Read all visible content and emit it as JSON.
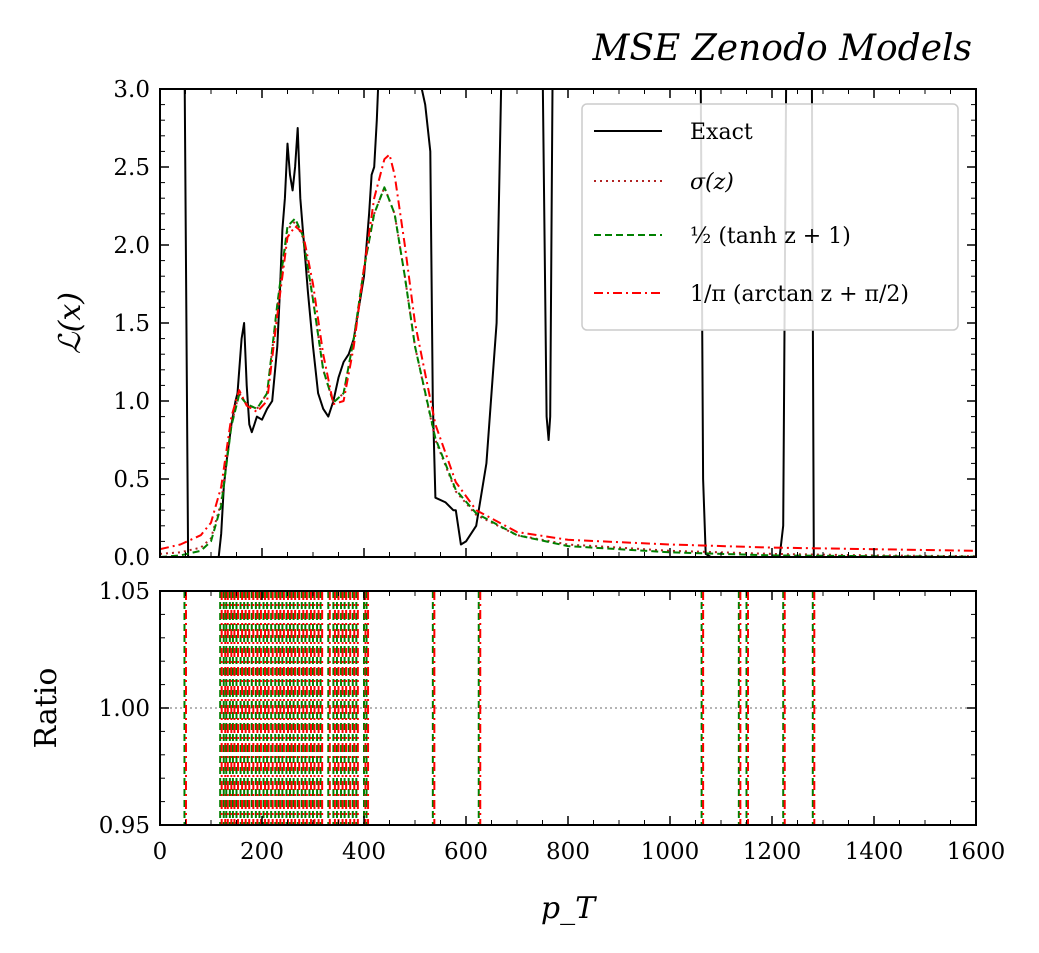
{
  "chart_data": {
    "type": "line",
    "title": "MSE Zenodo Models",
    "xlabel": "p_T",
    "top_panel": {
      "ylabel": "ℒ(x)",
      "xlim": [
        0,
        1600
      ],
      "ylim": [
        0,
        3.0
      ],
      "yticks": [
        "0.0",
        "0.5",
        "1.0",
        "1.5",
        "2.0",
        "2.5",
        "3.0"
      ],
      "legend_position": "top-right",
      "series": [
        {
          "name": "Exact",
          "color": "#000000",
          "style": "solid",
          "x": [
            0,
            40,
            48,
            55,
            115,
            120,
            125,
            130,
            140,
            148,
            152,
            160,
            165,
            170,
            175,
            180,
            185,
            190,
            200,
            210,
            220,
            230,
            235,
            240,
            245,
            250,
            255,
            260,
            265,
            270,
            275,
            280,
            285,
            290,
            300,
            310,
            320,
            330,
            340,
            350,
            360,
            370,
            375,
            380,
            390,
            400,
            410,
            415,
            420,
            425,
            430,
            440,
            500,
            520,
            530,
            535,
            540,
            560,
            575,
            580,
            590,
            600,
            620,
            640,
            660,
            670,
            680,
            750,
            758,
            762,
            765,
            770,
            775,
            780,
            1000,
            1060,
            1065,
            1070,
            1080,
            1100,
            1150,
            1200,
            1215,
            1222,
            1228,
            1240,
            1270,
            1278,
            1282,
            1300,
            1600
          ],
          "y": [
            3.2,
            3.2,
            3.2,
            0.0,
            0.0,
            0.15,
            0.45,
            0.6,
            0.85,
            1.0,
            1.05,
            1.4,
            1.5,
            1.1,
            0.85,
            0.8,
            0.85,
            0.9,
            0.88,
            0.95,
            1.0,
            1.35,
            1.7,
            2.1,
            2.3,
            2.65,
            2.45,
            2.35,
            2.5,
            2.75,
            2.3,
            2.1,
            1.9,
            1.7,
            1.35,
            1.05,
            0.95,
            0.9,
            1.0,
            1.15,
            1.25,
            1.3,
            1.35,
            1.4,
            1.6,
            1.8,
            2.2,
            2.45,
            2.5,
            2.8,
            3.2,
            3.2,
            3.2,
            2.9,
            2.6,
            1.0,
            0.38,
            0.35,
            0.3,
            0.3,
            0.08,
            0.1,
            0.2,
            0.6,
            1.5,
            3.2,
            3.2,
            3.2,
            0.9,
            0.75,
            0.9,
            3.2,
            3.2,
            3.2,
            3.2,
            3.2,
            0.5,
            0.02,
            0.0,
            0.0,
            0.0,
            0.0,
            0.0,
            0.2,
            3.2,
            3.2,
            3.2,
            3.2,
            0.0,
            0.0,
            0.0
          ]
        },
        {
          "name": "σ(z)",
          "color": "#b22222",
          "style": "dotted",
          "x": [
            0,
            40,
            80,
            100,
            120,
            140,
            155,
            170,
            190,
            210,
            230,
            250,
            265,
            280,
            300,
            320,
            340,
            360,
            380,
            400,
            420,
            440,
            460,
            480,
            500,
            540,
            580,
            620,
            700,
            800,
            1000,
            1200,
            1400,
            1600
          ],
          "y": [
            0.02,
            0.03,
            0.06,
            0.12,
            0.35,
            0.85,
            1.05,
            0.98,
            0.95,
            1.05,
            1.6,
            2.1,
            2.15,
            2.05,
            1.65,
            1.2,
            0.99,
            1.05,
            1.4,
            1.85,
            2.2,
            2.37,
            2.2,
            1.8,
            1.35,
            0.75,
            0.42,
            0.27,
            0.14,
            0.08,
            0.04,
            0.02,
            0.01,
            0.005
          ]
        },
        {
          "name": "½ (tanh z + 1)",
          "color": "#008000",
          "style": "dashed",
          "x": [
            0,
            40,
            80,
            100,
            120,
            140,
            155,
            170,
            190,
            210,
            230,
            250,
            265,
            280,
            300,
            320,
            340,
            360,
            380,
            400,
            420,
            440,
            460,
            480,
            500,
            540,
            580,
            620,
            700,
            800,
            1000,
            1200,
            1400,
            1600
          ],
          "y": [
            0.0,
            0.01,
            0.04,
            0.1,
            0.33,
            0.84,
            1.04,
            0.98,
            0.95,
            1.05,
            1.62,
            2.12,
            2.17,
            2.06,
            1.65,
            1.2,
            0.99,
            1.05,
            1.4,
            1.85,
            2.2,
            2.37,
            2.2,
            1.8,
            1.35,
            0.76,
            0.43,
            0.28,
            0.14,
            0.07,
            0.03,
            0.01,
            0.005,
            0.002
          ]
        },
        {
          "name": "1/π (arctan z + π/2)",
          "color": "#ff0000",
          "style": "dashdot",
          "x": [
            0,
            40,
            80,
            100,
            120,
            140,
            155,
            170,
            190,
            210,
            230,
            250,
            265,
            280,
            300,
            320,
            340,
            360,
            380,
            400,
            420,
            440,
            450,
            460,
            480,
            500,
            540,
            580,
            620,
            700,
            800,
            1000,
            1200,
            1400,
            1600
          ],
          "y": [
            0.05,
            0.08,
            0.14,
            0.22,
            0.45,
            0.9,
            1.07,
            0.97,
            0.93,
            1.0,
            1.55,
            2.05,
            2.12,
            2.08,
            1.75,
            1.3,
            0.98,
            1.0,
            1.35,
            1.85,
            2.3,
            2.55,
            2.58,
            2.45,
            2.0,
            1.5,
            0.85,
            0.48,
            0.3,
            0.16,
            0.11,
            0.08,
            0.06,
            0.05,
            0.04
          ]
        }
      ]
    },
    "bottom_panel": {
      "ylabel": "Ratio",
      "xlim": [
        0,
        1600
      ],
      "ylim": [
        0.95,
        1.05
      ],
      "yticks": [
        "0.95",
        "1.00",
        "1.05"
      ],
      "xticks": [
        "0",
        "200",
        "400",
        "600",
        "800",
        "1000",
        "1200",
        "1400",
        "1600"
      ],
      "reference_line": 1.0,
      "vertical_crossings_x": [
        48,
        118,
        125,
        130,
        137,
        143,
        150,
        158,
        165,
        172,
        180,
        188,
        195,
        203,
        210,
        218,
        226,
        233,
        240,
        248,
        255,
        262,
        270,
        278,
        285,
        293,
        300,
        308,
        315,
        330,
        340,
        347,
        355,
        362,
        370,
        378,
        385,
        400,
        405,
        535,
        625,
        1062,
        1135,
        1150,
        1222,
        1280
      ]
    }
  }
}
